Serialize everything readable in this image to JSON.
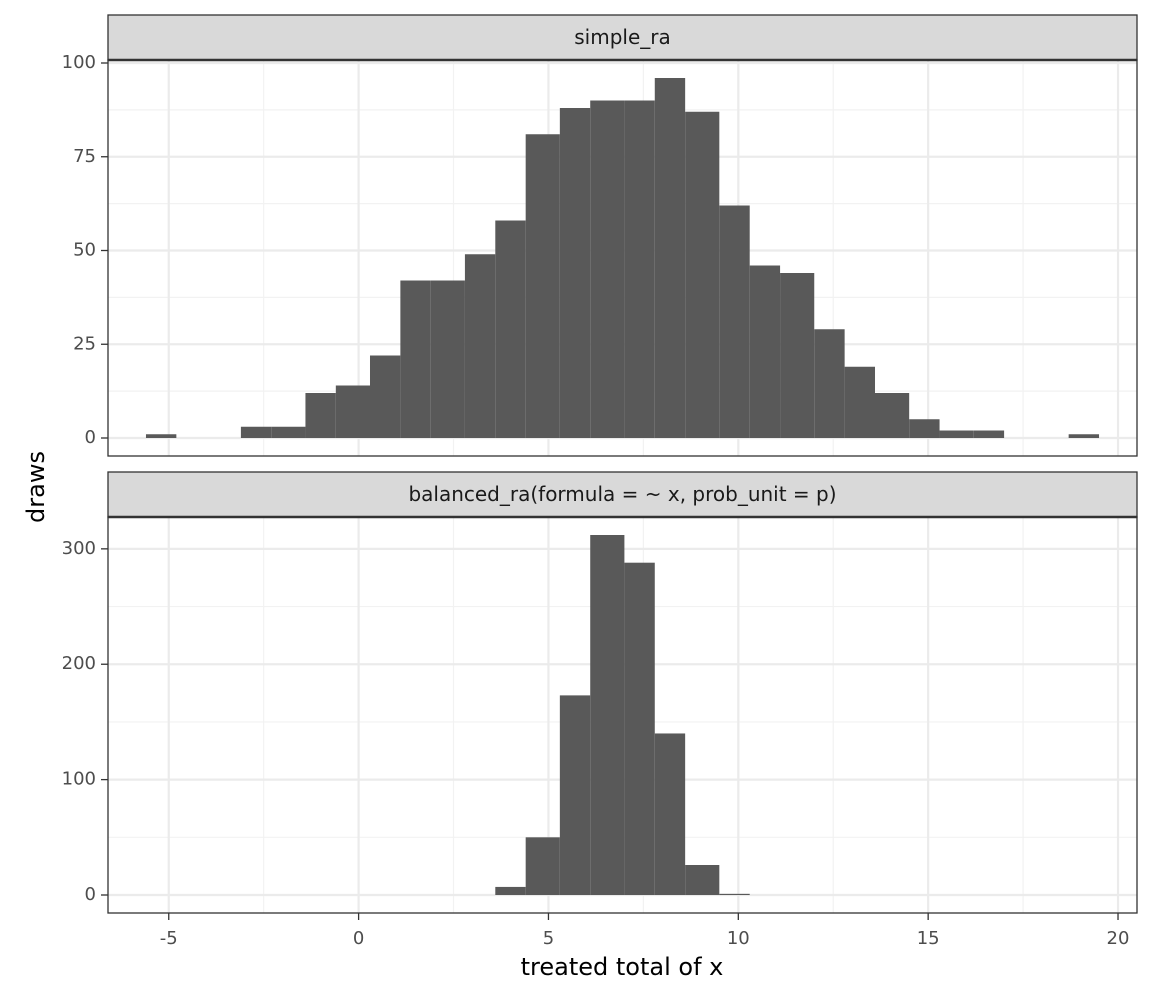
{
  "chart_data": {
    "type": "bar",
    "xlabel": "treated total of x",
    "ylabel": "draws",
    "xlim": [
      -6.6,
      20.5
    ],
    "x_ticks": [
      -5,
      0,
      5,
      10,
      15,
      20
    ],
    "x_tick_labels": [
      "-5",
      "0",
      "5",
      "10",
      "15",
      "20"
    ],
    "grid": true,
    "bar_color": "#595959",
    "strip_color": "#d9d9d9",
    "panels": [
      {
        "strip": "simple_ra",
        "ylim": [
          -4.8,
          100.8
        ],
        "y_ticks": [
          0,
          25,
          50,
          75,
          100
        ],
        "y_tick_labels": [
          "0",
          "25",
          "50",
          "75",
          "100"
        ],
        "bins": [
          {
            "x0": -5.6,
            "x1": -4.8,
            "count": 1
          },
          {
            "x0": -4.8,
            "x1": -3.9,
            "count": 0
          },
          {
            "x0": -3.9,
            "x1": -3.1,
            "count": 0
          },
          {
            "x0": -3.1,
            "x1": -2.3,
            "count": 3
          },
          {
            "x0": -2.3,
            "x1": -1.4,
            "count": 3
          },
          {
            "x0": -1.4,
            "x1": -0.6,
            "count": 12
          },
          {
            "x0": -0.6,
            "x1": 0.3,
            "count": 14
          },
          {
            "x0": 0.3,
            "x1": 1.1,
            "count": 22
          },
          {
            "x0": 1.1,
            "x1": 1.9,
            "count": 42
          },
          {
            "x0": 1.9,
            "x1": 2.8,
            "count": 42
          },
          {
            "x0": 2.8,
            "x1": 3.6,
            "count": 49
          },
          {
            "x0": 3.6,
            "x1": 4.4,
            "count": 58
          },
          {
            "x0": 4.4,
            "x1": 5.3,
            "count": 81
          },
          {
            "x0": 5.3,
            "x1": 6.1,
            "count": 88
          },
          {
            "x0": 6.1,
            "x1": 7.0,
            "count": 90
          },
          {
            "x0": 7.0,
            "x1": 7.8,
            "count": 90
          },
          {
            "x0": 7.8,
            "x1": 8.6,
            "count": 96
          },
          {
            "x0": 8.6,
            "x1": 9.5,
            "count": 87
          },
          {
            "x0": 9.5,
            "x1": 10.3,
            "count": 62
          },
          {
            "x0": 10.3,
            "x1": 11.1,
            "count": 46
          },
          {
            "x0": 11.1,
            "x1": 12.0,
            "count": 44
          },
          {
            "x0": 12.0,
            "x1": 12.8,
            "count": 29
          },
          {
            "x0": 12.8,
            "x1": 13.6,
            "count": 19
          },
          {
            "x0": 13.6,
            "x1": 14.5,
            "count": 12
          },
          {
            "x0": 14.5,
            "x1": 15.3,
            "count": 5
          },
          {
            "x0": 15.3,
            "x1": 16.2,
            "count": 2
          },
          {
            "x0": 16.2,
            "x1": 17.0,
            "count": 2
          },
          {
            "x0": 17.0,
            "x1": 17.8,
            "count": 0
          },
          {
            "x0": 17.8,
            "x1": 18.7,
            "count": 0
          },
          {
            "x0": 18.7,
            "x1": 19.5,
            "count": 1
          }
        ]
      },
      {
        "strip": "balanced_ra(formula = ~ x, prob_unit = p)",
        "ylim": [
          -15.6,
          327.6
        ],
        "y_ticks": [
          0,
          100,
          200,
          300
        ],
        "y_tick_labels": [
          "0",
          "100",
          "200",
          "300"
        ],
        "bins": [
          {
            "x0": 3.6,
            "x1": 4.4,
            "count": 7
          },
          {
            "x0": 4.4,
            "x1": 5.3,
            "count": 50
          },
          {
            "x0": 5.3,
            "x1": 6.1,
            "count": 173
          },
          {
            "x0": 6.1,
            "x1": 7.0,
            "count": 312
          },
          {
            "x0": 7.0,
            "x1": 7.8,
            "count": 288
          },
          {
            "x0": 7.8,
            "x1": 8.6,
            "count": 140
          },
          {
            "x0": 8.6,
            "x1": 9.5,
            "count": 26
          },
          {
            "x0": 9.5,
            "x1": 10.3,
            "count": 1
          }
        ]
      }
    ]
  }
}
